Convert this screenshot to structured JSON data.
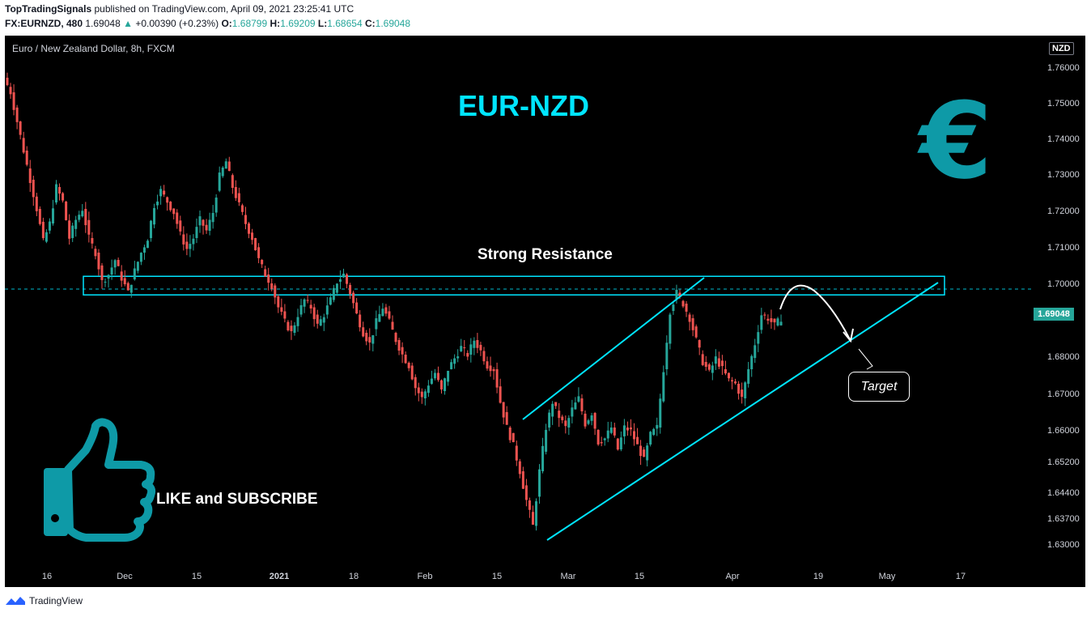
{
  "header": {
    "publisher": "TopTradingSignals",
    "published_text": "published on TradingView.com, April 09, 2021 23:25:41 UTC",
    "symbol_interval": "FX:EURNZD, 480",
    "last": "1.69048",
    "change_arrow": "▲",
    "change": "+0.00390 (+0.23%)",
    "o_label": "O:",
    "o_value": "1.68799",
    "h_label": "H:",
    "h_value": "1.69209",
    "l_label": "L:",
    "l_value": "1.68654",
    "c_label": "C:",
    "c_value": "1.69048"
  },
  "chart": {
    "symbol_title": "Euro / New Zealand Dollar, 8h, FXCM",
    "currency_badge": "NZD",
    "current_price_tag": "1.69048",
    "y_ticks": [
      "1.76000",
      "1.75000",
      "1.74000",
      "1.73000",
      "1.72000",
      "1.71000",
      "1.70000",
      "1.68000",
      "1.67000",
      "1.66000",
      "1.65200",
      "1.64400",
      "1.63700",
      "1.63000"
    ],
    "x_ticks": [
      "16",
      "Dec",
      "15",
      "2021",
      "18",
      "Feb",
      "15",
      "Mar",
      "15",
      "Apr",
      "19",
      "May",
      "17"
    ],
    "annotations": {
      "title": "EUR-NZD",
      "resistance_label": "Strong Resistance",
      "target_label": "Target",
      "cta_label": "LIKE and SUBSCRIBE",
      "euro_symbol": "€"
    },
    "colors": {
      "up": "#26a69a",
      "down": "#ef5350",
      "accent": "#00e5ff",
      "icon": "#0e9aa7"
    }
  },
  "chart_data": {
    "type": "candlestick",
    "title": "Euro / New Zealand Dollar, 8h, FXCM",
    "ylim": [
      1.625,
      1.765
    ],
    "x_ticks": [
      "16",
      "Dec",
      "15",
      "2021",
      "18",
      "Feb",
      "15",
      "Mar",
      "15",
      "Apr",
      "19",
      "May",
      "17"
    ],
    "close_path": [
      1.752,
      1.744,
      1.736,
      1.728,
      1.72,
      1.711,
      1.716,
      1.726,
      1.722,
      1.712,
      1.717,
      1.72,
      1.712,
      1.708,
      1.7,
      1.702,
      1.706,
      1.701,
      1.697,
      1.703,
      1.708,
      1.712,
      1.721,
      1.725,
      1.722,
      1.719,
      1.713,
      1.709,
      1.712,
      1.717,
      1.714,
      1.719,
      1.729,
      1.733,
      1.726,
      1.721,
      1.716,
      1.712,
      1.706,
      1.702,
      1.699,
      1.693,
      1.689,
      1.686,
      1.691,
      1.695,
      1.693,
      1.688,
      1.691,
      1.695,
      1.7,
      1.702,
      1.697,
      1.691,
      1.686,
      1.683,
      1.689,
      1.693,
      1.689,
      1.684,
      1.68,
      1.677,
      1.671,
      1.668,
      1.672,
      1.675,
      1.67,
      1.676,
      1.679,
      1.682,
      1.68,
      1.684,
      1.681,
      1.677,
      1.676,
      1.667,
      1.66,
      1.655,
      1.648,
      1.64,
      1.633,
      1.648,
      1.66,
      1.667,
      1.663,
      1.66,
      1.665,
      1.668,
      1.661,
      1.664,
      1.656,
      1.657,
      1.66,
      1.654,
      1.66,
      1.659,
      1.655,
      1.651,
      1.658,
      1.66,
      1.676,
      1.692,
      1.697,
      1.694,
      1.69,
      1.684,
      1.678,
      1.675,
      1.679,
      1.676,
      1.673,
      1.672,
      1.668,
      1.676,
      1.683,
      1.691,
      1.69,
      1.688,
      1.69
    ],
    "last_close": 1.69048,
    "resistance_zone": [
      1.6964,
      1.7015
    ],
    "dashed_level": 1.698,
    "channel_upper": [
      [
        1.662,
        1.7
      ]
    ],
    "channel_lower": [
      [
        1.63,
        1.698
      ]
    ],
    "annotations": [
      "EUR-NZD",
      "Strong Resistance",
      "Target",
      "LIKE and SUBSCRIBE"
    ]
  }
}
